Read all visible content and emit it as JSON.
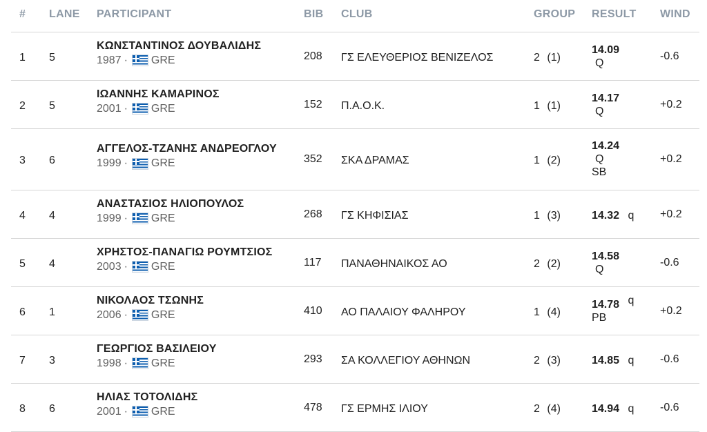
{
  "headers": {
    "rank": "#",
    "lane": "LANE",
    "participant": "PARTICIPANT",
    "bib": "BIB",
    "club": "CLUB",
    "group": "GROUP",
    "result": "RESULT",
    "wind": "WIND"
  },
  "rows": [
    {
      "rank": "1",
      "lane": "5",
      "name": "ΚΩΝΣΤΑΝΤΙΝΟΣ ΔΟΥΒΑΛΙΔΗΣ",
      "year": "1987",
      "country": "GRE",
      "bib": "208",
      "club": "ΓΣ ΕΛΕΥΘΕΡΙΟΣ ΒΕΝΙΖΕΛΟΣ",
      "group": "2",
      "group_pos": "(1)",
      "result": "14.09",
      "q_inline": "",
      "q_below": "Q",
      "note": "",
      "wind": "-0.6"
    },
    {
      "rank": "2",
      "lane": "5",
      "name": "ΙΩΑΝΝΗΣ ΚΑΜΑΡΙΝΟΣ",
      "year": "2001",
      "country": "GRE",
      "bib": "152",
      "club": "Π.Α.Ο.Κ.",
      "group": "1",
      "group_pos": "(1)",
      "result": "14.17",
      "q_inline": "",
      "q_below": "Q",
      "note": "",
      "wind": "+0.2"
    },
    {
      "rank": "3",
      "lane": "6",
      "name": "ΑΓΓΕΛΟΣ-ΤΖΑΝΗΣ ΑΝΔΡΕΟΓΛΟΥ",
      "year": "1999",
      "country": "GRE",
      "bib": "352",
      "club": "ΣΚΑ ΔΡΑΜΑΣ",
      "group": "1",
      "group_pos": "(2)",
      "result": "14.24",
      "q_inline": "",
      "q_below": "Q",
      "note": "SB",
      "wind": "+0.2"
    },
    {
      "rank": "4",
      "lane": "4",
      "name": "ΑΝΑΣΤΑΣΙΟΣ ΗΛΙΟΠΟΥΛΟΣ",
      "year": "1999",
      "country": "GRE",
      "bib": "268",
      "club": "ΓΣ ΚΗΦΙΣΙΑΣ",
      "group": "1",
      "group_pos": "(3)",
      "result": "14.32",
      "q_inline": "q",
      "q_below": "",
      "note": "",
      "wind": "+0.2"
    },
    {
      "rank": "5",
      "lane": "4",
      "name": "ΧΡΗΣΤΟΣ-ΠΑΝΑΓΙΩ ΡΟΥΜΤΣΙΟΣ",
      "year": "2003",
      "country": "GRE",
      "bib": "117",
      "club": "ΠΑΝΑΘΗΝΑΙΚΟΣ ΑΟ",
      "group": "2",
      "group_pos": "(2)",
      "result": "14.58",
      "q_inline": "",
      "q_below": "Q",
      "note": "",
      "wind": "-0.6"
    },
    {
      "rank": "6",
      "lane": "1",
      "name": "ΝΙΚΟΛΑΟΣ ΤΣΩΝΗΣ",
      "year": "2006",
      "country": "GRE",
      "bib": "410",
      "club": "ΑΟ ΠΑΛΑΙΟΥ ΦΑΛΗΡΟΥ",
      "group": "1",
      "group_pos": "(4)",
      "result": "14.78",
      "q_inline": "q",
      "q_below": "",
      "note": "PB",
      "wind": "+0.2"
    },
    {
      "rank": "7",
      "lane": "3",
      "name": "ΓΕΩΡΓΙΟΣ ΒΑΣΙΛΕΙΟΥ",
      "year": "1998",
      "country": "GRE",
      "bib": "293",
      "club": "ΣΑ ΚΟΛΛΕΓΙΟΥ ΑΘΗΝΩΝ",
      "group": "2",
      "group_pos": "(3)",
      "result": "14.85",
      "q_inline": "q",
      "q_below": "",
      "note": "",
      "wind": "-0.6"
    },
    {
      "rank": "8",
      "lane": "6",
      "name": "ΗΛΙΑΣ ΤΟΤΟΛΙΔΗΣ",
      "year": "2001",
      "country": "GRE",
      "bib": "478",
      "club": "ΓΣ ΕΡΜΗΣ ΙΛΙΟΥ",
      "group": "2",
      "group_pos": "(4)",
      "result": "14.94",
      "q_inline": "q",
      "q_below": "",
      "note": "",
      "wind": "-0.6"
    }
  ]
}
